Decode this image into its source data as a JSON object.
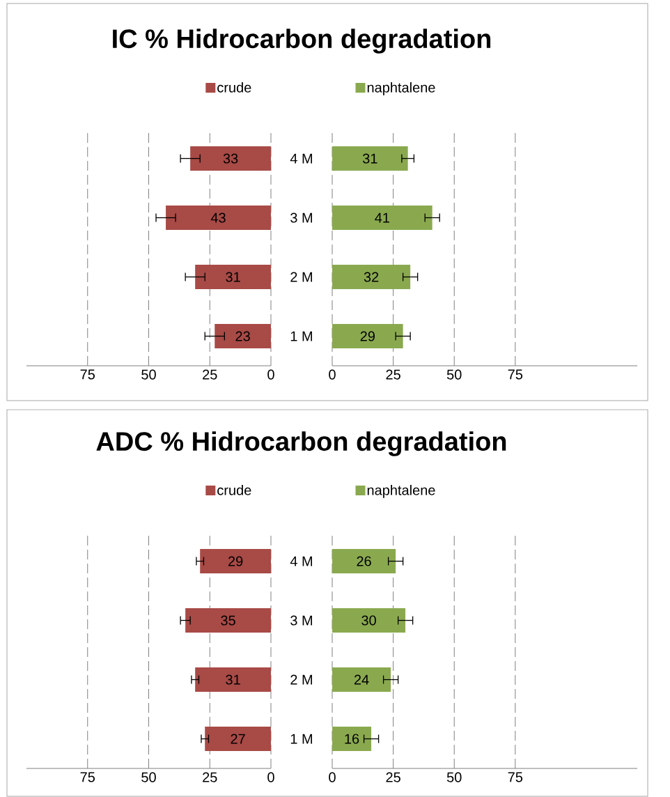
{
  "chart_data": [
    {
      "type": "bar",
      "orientation": "horizontal",
      "title": "IC % Hidrocarbon degradation",
      "categories": [
        "4 M",
        "3 M",
        "2 M",
        "1 M"
      ],
      "series": [
        {
          "name": "crude",
          "color": "#a84a46",
          "values": [
            33,
            43,
            31,
            23
          ],
          "errors": [
            4,
            4,
            4,
            4
          ]
        }
      ],
      "xlim": [
        100,
        0
      ],
      "xticks": [
        75,
        50,
        25,
        0
      ],
      "data_labels": true,
      "legend": "top",
      "grid": "x"
    },
    {
      "type": "bar",
      "orientation": "horizontal",
      "categories": [
        null,
        null,
        null,
        null
      ],
      "series": [
        {
          "name": "naphtalene",
          "color": "#8aa94f",
          "values": [
            31,
            41,
            32,
            29
          ],
          "errors": [
            2.5,
            3,
            3,
            3
          ]
        }
      ],
      "xlim": [
        0,
        125
      ],
      "xticks": [
        0,
        25,
        50,
        75
      ],
      "data_labels": true,
      "legend": "top",
      "grid": "x",
      "tick_labels": "x"
    },
    {
      "type": "bar",
      "orientation": "horizontal",
      "title": "ADC % Hidrocarbon degradation",
      "categories": [
        "4 M",
        "3 M",
        "2 M",
        "1 M"
      ],
      "series": [
        {
          "name": "crude",
          "color": "#a84a46",
          "values": [
            29,
            35,
            31,
            27
          ],
          "errors": [
            1.5,
            2,
            1.5,
            1.5
          ]
        }
      ],
      "xlim": [
        100,
        0
      ],
      "xticks": [
        75,
        50,
        25,
        0
      ],
      "data_labels": true,
      "legend": "top",
      "grid": "x"
    },
    {
      "type": "bar",
      "orientation": "horizontal",
      "categories": [
        null,
        null,
        null,
        null
      ],
      "series": [
        {
          "name": "naphtalene",
          "color": "#8aa94f",
          "values": [
            26,
            30,
            24,
            16
          ],
          "errors": [
            3,
            3,
            3,
            3
          ]
        }
      ],
      "xlim": [
        0,
        125
      ],
      "xticks": [
        0,
        25,
        50,
        75
      ],
      "data_labels": true,
      "legend": "top",
      "grid": "x",
      "tick_labels": "x"
    }
  ]
}
